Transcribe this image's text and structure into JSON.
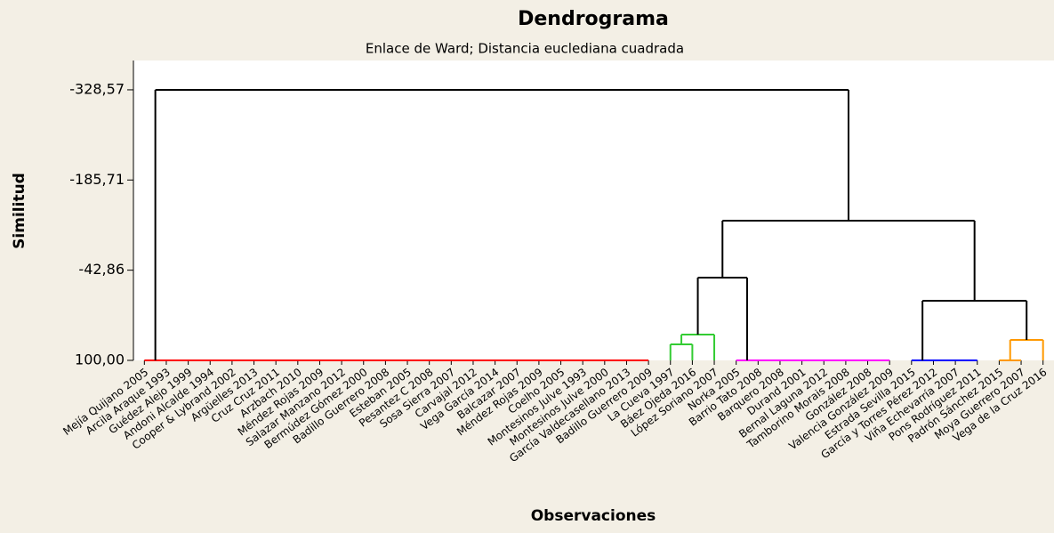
{
  "chart_data": {
    "type": "dendrogram",
    "title": "Dendrograma",
    "subtitle": "Enlace de Ward; Distancia euclediana cuadrada",
    "xlabel": "Observaciones",
    "ylabel": "Similitud",
    "ylim": [
      100,
      -375
    ],
    "yticks": [
      {
        "value": -328.57,
        "label": "-328,57"
      },
      {
        "value": -185.71,
        "label": "-185,71"
      },
      {
        "value": -42.86,
        "label": "-42,86"
      },
      {
        "value": 100,
        "label": "100,00"
      }
    ],
    "leaves": [
      "Mejía Quijano 2005",
      "Arcila Araque 1993",
      "Guédez Alejo 1999",
      "Andoni Alcalde 1994",
      "Cooper & Lybrand 2002",
      "Argüelles 2013",
      "Cruz Cruz 2011",
      "Arzbach 2010",
      "Méndez Rojas 2009",
      "Salazar Manzano 2012",
      "Bermúdez Gómez 2000",
      "Badillo Guerrero 2008",
      "Esteban 2005",
      "Pesantez C 2008",
      "Sosa Sierra 2007",
      "Carvajal 2012",
      "Vega García 2014",
      "Balcazar 2007",
      "Méndez Rojas 2009",
      "Coelho 2005",
      "Montesinos Julve 1993",
      "Montesinos Julve 2000",
      "García Valdecasellano 2013",
      "Badillo Guerrero 2009",
      "La Cueva 1997",
      "Báez Ojeda 2016",
      "López Soriano 2007",
      "Norka 2005",
      "Barrio Tato 2008",
      "Barquero 2008",
      "Durand 2001",
      "Bernal Laguna 2012",
      "Tamborino Morais 2008",
      "González 2008",
      "Valencia González 2009",
      "Estrada Sevilla 2015",
      "García y Torres Pérez 2012",
      "Viña Echevarría 2007",
      "Pons Rodríguez 2011",
      "Padrón Sánchez 2015",
      "Moya Guerrero 2007",
      "Vega de la Cruz 2016"
    ],
    "merges": [
      {
        "children": [
          0,
          1,
          2,
          3,
          4,
          5,
          6,
          7,
          8,
          9,
          10,
          11,
          12,
          13,
          14,
          15,
          16,
          17,
          18,
          19,
          20,
          21,
          22,
          23
        ],
        "height": 100,
        "color": "#ff0000"
      },
      {
        "children": [
          24,
          25
        ],
        "height": 74.6,
        "color": "#33cc33"
      },
      {
        "children": [
          43,
          26
        ],
        "height": 59.1,
        "color": "#33cc33"
      },
      {
        "children": [
          27,
          28,
          29,
          30,
          31,
          32,
          33,
          34
        ],
        "height": 100,
        "color": "#ff00ff"
      },
      {
        "children": [
          44,
          45
        ],
        "height": -31.1,
        "color": "#000000"
      },
      {
        "children": [
          35,
          36,
          37,
          38
        ],
        "height": 100,
        "color": "#0000ff"
      },
      {
        "children": [
          39,
          40
        ],
        "height": 100,
        "color": "#ff9900"
      },
      {
        "children": [
          48,
          41
        ],
        "height": 67.6,
        "color": "#ff9900"
      },
      {
        "children": [
          47,
          49
        ],
        "height": 5.5,
        "color": "#000000"
      },
      {
        "children": [
          46,
          50
        ],
        "height": -121.3,
        "color": "#000000"
      },
      {
        "children": [
          42,
          51
        ],
        "height": -328.57,
        "color": "#000000"
      }
    ]
  }
}
